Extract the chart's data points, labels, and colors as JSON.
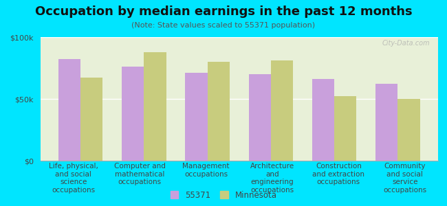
{
  "title": "Occupation by median earnings in the past 12 months",
  "subtitle": "(Note: State values scaled to 55371 population)",
  "categories": [
    "Life, physical,\nand social\nscience\noccupations",
    "Computer and\nmathematical\noccupations",
    "Management\noccupations",
    "Architecture\nand\nengineering\noccupations",
    "Construction\nand extraction\noccupations",
    "Community\nand social\nservice\noccupations"
  ],
  "values_55371": [
    82000,
    76000,
    71000,
    70000,
    66000,
    62000
  ],
  "values_minnesota": [
    67000,
    88000,
    80000,
    81000,
    52000,
    50000
  ],
  "bar_color_55371": "#c9a0dc",
  "bar_color_minnesota": "#c8cc7e",
  "background_color": "#00e5ff",
  "plot_bg_color": "#e8f0d8",
  "ylim": [
    0,
    100000
  ],
  "yticks": [
    0,
    50000,
    100000
  ],
  "ytick_labels": [
    "$0",
    "$50k",
    "$100k"
  ],
  "legend_label_55371": "55371",
  "legend_label_minnesota": "Minnesota",
  "watermark": "City-Data.com",
  "title_fontsize": 13,
  "subtitle_fontsize": 8,
  "xlabel_fontsize": 7.5,
  "ylabel_fontsize": 8
}
